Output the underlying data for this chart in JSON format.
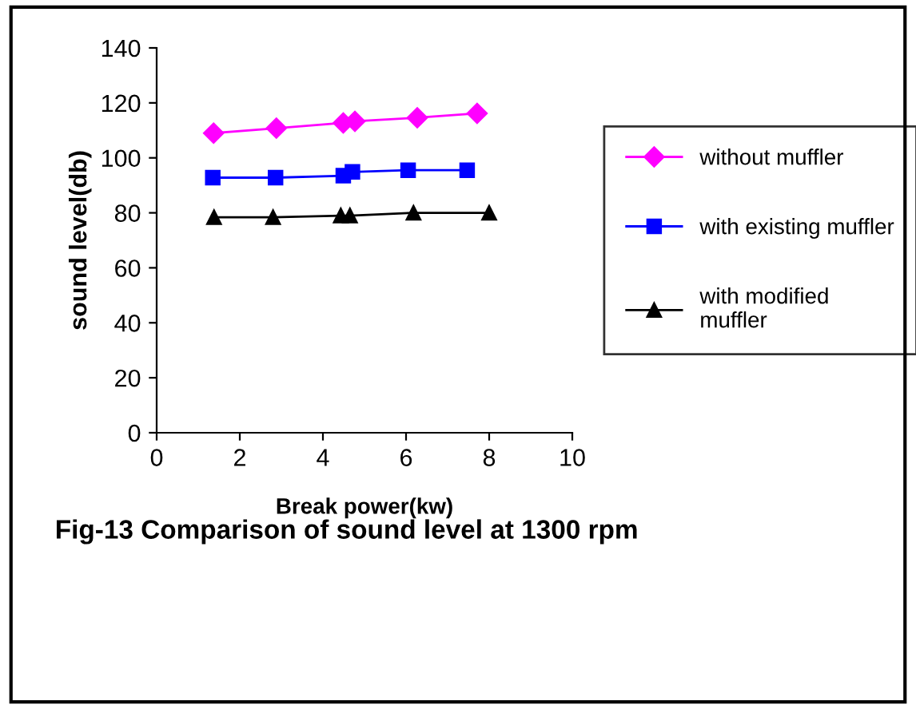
{
  "chart_data": {
    "type": "line",
    "xlabel": "Break power(kw)",
    "ylabel": "sound level(db)",
    "xlim": [
      0,
      10
    ],
    "xticks": [
      0,
      2,
      4,
      6,
      8,
      10
    ],
    "ylim": [
      0,
      140
    ],
    "yticks": [
      0,
      20,
      40,
      60,
      80,
      100,
      120,
      140
    ],
    "grid": false,
    "legend": "right",
    "annotations": [
      "Fig-13 Comparison of sound level at 1300 rpm"
    ],
    "series": [
      {
        "name": "without muffler",
        "color": "#ff00ff",
        "marker": "diamond",
        "x": [
          1.37,
          2.88,
          4.49,
          4.77,
          6.27,
          7.71
        ],
        "values": [
          109,
          110.8,
          112.7,
          113.3,
          114.6,
          116.2
        ]
      },
      {
        "name": "with existing muffler",
        "color": "#0000ff",
        "marker": "square",
        "x": [
          1.35,
          2.86,
          4.49,
          4.71,
          6.05,
          7.47
        ],
        "values": [
          92.8,
          92.8,
          93.5,
          94.9,
          95.5,
          95.5
        ]
      },
      {
        "name": "with modified\nmuffler",
        "color": "#000000",
        "marker": "triangle",
        "x": [
          1.38,
          2.8,
          4.43,
          4.65,
          6.18,
          8.0
        ],
        "values": [
          78.4,
          78.4,
          79,
          79,
          80,
          80
        ]
      }
    ]
  }
}
